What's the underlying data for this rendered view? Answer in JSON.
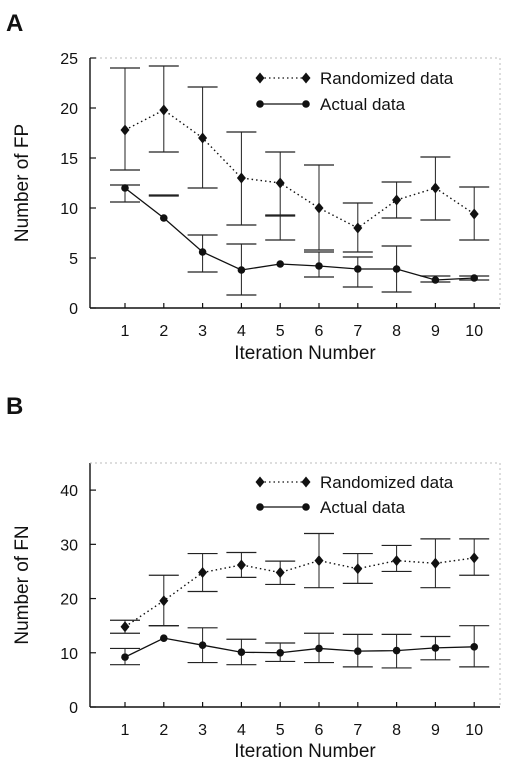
{
  "chart_data": [
    {
      "panel": "A",
      "type": "line",
      "xlabel": "Iteration Number",
      "ylabel": "Number of FP",
      "categories": [
        1,
        2,
        3,
        4,
        5,
        6,
        7,
        8,
        9,
        10
      ],
      "ylim": [
        0,
        25
      ],
      "yticks": [
        0,
        5,
        10,
        15,
        20,
        25
      ],
      "legend_position": "top-right",
      "series": [
        {
          "name": "Randomized data",
          "style": "dotted",
          "marker": "diamond",
          "values": [
            17.8,
            19.8,
            17.0,
            13.0,
            12.5,
            10.0,
            8.0,
            10.8,
            12.0,
            9.4
          ],
          "err_low": [
            13.8,
            15.6,
            12.0,
            8.3,
            9.3,
            5.8,
            5.6,
            9.0,
            8.8,
            6.8
          ],
          "err_high": [
            24.0,
            24.2,
            22.1,
            17.6,
            15.6,
            14.3,
            10.5,
            12.6,
            15.1,
            12.1
          ]
        },
        {
          "name": "Actual data",
          "style": "solid",
          "marker": "circle",
          "values": [
            12.0,
            9.0,
            5.6,
            3.8,
            4.4,
            4.2,
            3.9,
            3.9,
            2.8,
            3.0
          ],
          "err_low": [
            10.6,
            11.2,
            3.6,
            1.3,
            6.8,
            3.1,
            2.1,
            1.6,
            2.6,
            2.8
          ],
          "err_high": [
            12.3,
            11.3,
            7.3,
            6.4,
            9.2,
            5.6,
            5.1,
            6.2,
            3.2,
            3.2
          ]
        }
      ]
    },
    {
      "panel": "B",
      "type": "line",
      "xlabel": "Iteration Number",
      "ylabel": "Number of FN",
      "categories": [
        1,
        2,
        3,
        4,
        5,
        6,
        7,
        8,
        9,
        10
      ],
      "ylim": [
        0,
        45
      ],
      "yticks": [
        0,
        10,
        20,
        30,
        40
      ],
      "legend_position": "top-right",
      "series": [
        {
          "name": "Randomized data",
          "style": "dotted",
          "marker": "diamond",
          "values": [
            14.8,
            19.6,
            24.8,
            26.2,
            24.8,
            27.0,
            25.5,
            27.0,
            26.5,
            27.5
          ],
          "err_low": [
            13.6,
            15.0,
            21.3,
            23.9,
            22.6,
            22.0,
            22.8,
            25.0,
            22.0,
            24.3
          ],
          "err_high": [
            16.0,
            24.3,
            28.3,
            28.5,
            26.9,
            32.0,
            28.3,
            29.8,
            31.0,
            31.0
          ]
        },
        {
          "name": "Actual data",
          "style": "solid",
          "marker": "circle",
          "values": [
            9.2,
            12.7,
            11.4,
            10.1,
            10.0,
            10.8,
            10.3,
            10.4,
            10.9,
            11.1
          ],
          "err_low": [
            7.8,
            15.0,
            8.2,
            7.8,
            8.4,
            8.2,
            7.4,
            7.2,
            8.7,
            7.4
          ],
          "err_high": [
            10.8,
            15.0,
            14.6,
            12.5,
            11.8,
            13.6,
            13.4,
            13.4,
            13.0,
            15.0
          ]
        }
      ]
    }
  ]
}
